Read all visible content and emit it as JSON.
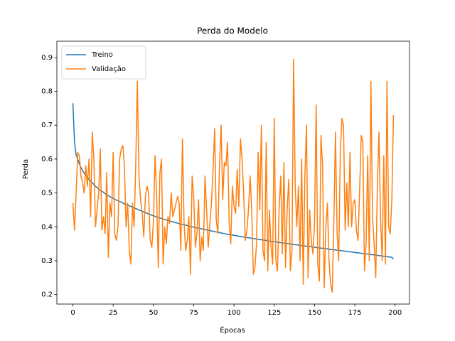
{
  "chart_data": {
    "type": "line",
    "title": "Perda do Modelo",
    "x_label": "Épocas",
    "y_label": "Perda",
    "x": [
      0,
      1,
      2,
      3,
      4,
      5,
      6,
      7,
      8,
      9,
      10,
      11,
      12,
      13,
      14,
      15,
      16,
      17,
      18,
      19,
      20,
      21,
      22,
      23,
      24,
      25,
      26,
      27,
      28,
      29,
      30,
      31,
      32,
      33,
      34,
      35,
      36,
      37,
      38,
      39,
      40,
      41,
      42,
      43,
      44,
      45,
      46,
      47,
      48,
      49,
      50,
      51,
      52,
      53,
      54,
      55,
      56,
      57,
      58,
      59,
      60,
      61,
      62,
      63,
      64,
      65,
      66,
      67,
      68,
      69,
      70,
      71,
      72,
      73,
      74,
      75,
      76,
      77,
      78,
      79,
      80,
      81,
      82,
      83,
      84,
      85,
      86,
      87,
      88,
      89,
      90,
      91,
      92,
      93,
      94,
      95,
      96,
      97,
      98,
      99,
      100,
      101,
      102,
      103,
      104,
      105,
      106,
      107,
      108,
      109,
      110,
      111,
      112,
      113,
      114,
      115,
      116,
      117,
      118,
      119,
      120,
      121,
      122,
      123,
      124,
      125,
      126,
      127,
      128,
      129,
      130,
      131,
      132,
      133,
      134,
      135,
      136,
      137,
      138,
      139,
      140,
      141,
      142,
      143,
      144,
      145,
      146,
      147,
      148,
      149,
      150,
      151,
      152,
      153,
      154,
      155,
      156,
      157,
      158,
      159,
      160,
      161,
      162,
      163,
      164,
      165,
      166,
      167,
      168,
      169,
      170,
      171,
      172,
      173,
      174,
      175,
      176,
      177,
      178,
      179,
      180,
      181,
      182,
      183,
      184,
      185,
      186,
      187,
      188,
      189,
      190,
      191,
      192,
      193,
      194,
      195,
      196,
      197,
      198,
      199
    ],
    "series": [
      {
        "name": "Treino",
        "color": "#1f77b4",
        "values": [
          0.765,
          0.65,
          0.612,
          0.6,
          0.585,
          0.575,
          0.566,
          0.558,
          0.552,
          0.546,
          0.54,
          0.535,
          0.53,
          0.525,
          0.52,
          0.516,
          0.512,
          0.508,
          0.505,
          0.502,
          0.498,
          0.494,
          0.492,
          0.489,
          0.486,
          0.484,
          0.481,
          0.479,
          0.477,
          0.475,
          0.473,
          0.47,
          0.468,
          0.466,
          0.464,
          0.462,
          0.46,
          0.458,
          0.456,
          0.454,
          0.452,
          0.45,
          0.448,
          0.446,
          0.444,
          0.442,
          0.44,
          0.438,
          0.436,
          0.434,
          0.433,
          0.431,
          0.429,
          0.428,
          0.426,
          0.425,
          0.423,
          0.422,
          0.42,
          0.419,
          0.418,
          0.416,
          0.415,
          0.413,
          0.412,
          0.411,
          0.409,
          0.408,
          0.407,
          0.406,
          0.405,
          0.404,
          0.402,
          0.401,
          0.4,
          0.399,
          0.398,
          0.397,
          0.396,
          0.395,
          0.394,
          0.393,
          0.392,
          0.391,
          0.39,
          0.389,
          0.388,
          0.387,
          0.386,
          0.385,
          0.384,
          0.383,
          0.382,
          0.381,
          0.38,
          0.379,
          0.378,
          0.377,
          0.377,
          0.376,
          0.375,
          0.374,
          0.373,
          0.372,
          0.372,
          0.371,
          0.37,
          0.369,
          0.368,
          0.368,
          0.367,
          0.366,
          0.365,
          0.365,
          0.364,
          0.363,
          0.362,
          0.362,
          0.361,
          0.36,
          0.36,
          0.359,
          0.358,
          0.357,
          0.357,
          0.356,
          0.355,
          0.355,
          0.354,
          0.353,
          0.353,
          0.352,
          0.351,
          0.351,
          0.35,
          0.349,
          0.349,
          0.348,
          0.347,
          0.347,
          0.346,
          0.345,
          0.345,
          0.344,
          0.343,
          0.343,
          0.342,
          0.342,
          0.341,
          0.34,
          0.34,
          0.339,
          0.338,
          0.338,
          0.337,
          0.337,
          0.336,
          0.335,
          0.335,
          0.334,
          0.333,
          0.333,
          0.332,
          0.332,
          0.331,
          0.33,
          0.33,
          0.329,
          0.329,
          0.328,
          0.327,
          0.327,
          0.326,
          0.326,
          0.325,
          0.324,
          0.324,
          0.323,
          0.323,
          0.322,
          0.321,
          0.321,
          0.32,
          0.32,
          0.319,
          0.318,
          0.318,
          0.317,
          0.317,
          0.316,
          0.315,
          0.315,
          0.314,
          0.313,
          0.313,
          0.312,
          0.311,
          0.311,
          0.31,
          0.305
        ]
      },
      {
        "name": "Validação",
        "color": "#ff7f0e",
        "values": [
          0.47,
          0.39,
          0.5,
          0.62,
          0.61,
          0.55,
          0.53,
          0.5,
          0.58,
          0.52,
          0.6,
          0.43,
          0.68,
          0.6,
          0.4,
          0.45,
          0.5,
          0.63,
          0.39,
          0.43,
          0.38,
          0.56,
          0.31,
          0.47,
          0.43,
          0.62,
          0.38,
          0.36,
          0.4,
          0.6,
          0.63,
          0.64,
          0.58,
          0.4,
          0.47,
          0.33,
          0.29,
          0.47,
          0.4,
          0.58,
          0.83,
          0.55,
          0.48,
          0.44,
          0.37,
          0.49,
          0.52,
          0.5,
          0.36,
          0.34,
          0.42,
          0.61,
          0.49,
          0.28,
          0.56,
          0.6,
          0.29,
          0.4,
          0.35,
          0.43,
          0.41,
          0.5,
          0.43,
          0.45,
          0.47,
          0.49,
          0.47,
          0.33,
          0.66,
          0.41,
          0.33,
          0.36,
          0.43,
          0.26,
          0.55,
          0.49,
          0.34,
          0.38,
          0.48,
          0.3,
          0.37,
          0.33,
          0.55,
          0.45,
          0.34,
          0.41,
          0.47,
          0.57,
          0.69,
          0.42,
          0.38,
          0.58,
          0.7,
          0.48,
          0.59,
          0.58,
          0.65,
          0.41,
          0.35,
          0.52,
          0.46,
          0.44,
          0.57,
          0.46,
          0.66,
          0.6,
          0.5,
          0.36,
          0.39,
          0.45,
          0.55,
          0.45,
          0.26,
          0.28,
          0.35,
          0.62,
          0.45,
          0.7,
          0.33,
          0.3,
          0.65,
          0.27,
          0.45,
          0.34,
          0.29,
          0.72,
          0.3,
          0.27,
          0.45,
          0.55,
          0.32,
          0.59,
          0.28,
          0.45,
          0.54,
          0.27,
          0.33,
          0.895,
          0.52,
          0.4,
          0.52,
          0.3,
          0.6,
          0.23,
          0.55,
          0.7,
          0.25,
          0.45,
          0.36,
          0.32,
          0.41,
          0.76,
          0.29,
          0.24,
          0.67,
          0.58,
          0.22,
          0.4,
          0.47,
          0.3,
          0.23,
          0.207,
          0.42,
          0.68,
          0.38,
          0.3,
          0.62,
          0.72,
          0.7,
          0.39,
          0.53,
          0.4,
          0.62,
          0.4,
          0.47,
          0.48,
          0.39,
          0.36,
          0.51,
          0.67,
          0.65,
          0.27,
          0.35,
          0.61,
          0.3,
          0.83,
          0.43,
          0.35,
          0.25,
          0.52,
          0.68,
          0.42,
          0.3,
          0.61,
          0.29,
          0.83,
          0.4,
          0.38,
          0.48,
          0.73
        ]
      }
    ],
    "xlim": [
      -9.95,
      208.95
    ],
    "xticks": [
      0,
      25,
      50,
      75,
      100,
      125,
      150,
      175,
      200
    ],
    "ylim": [
      0.172,
      0.948
    ],
    "yticks": [
      0.2,
      0.3,
      0.4,
      0.5,
      0.6,
      0.7,
      0.8,
      0.9
    ],
    "legend": "upper left"
  }
}
